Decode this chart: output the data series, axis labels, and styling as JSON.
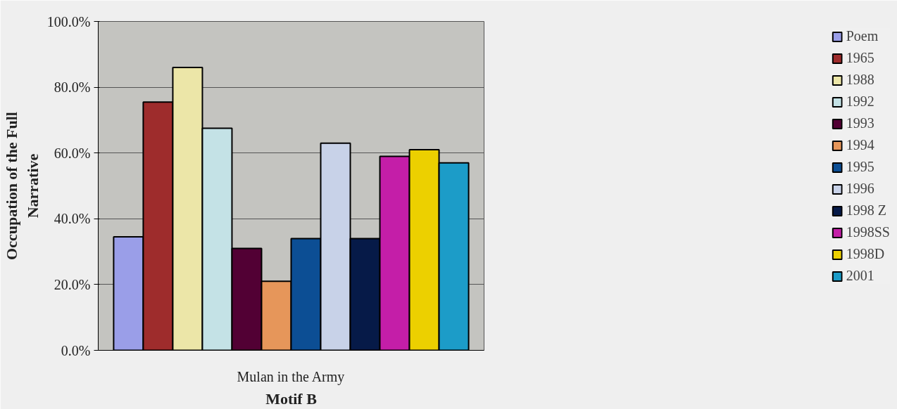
{
  "chart_data": {
    "type": "bar",
    "xlabel": "Motif B",
    "ylabel": "Occupation of the Full\nNarrative",
    "categories": [
      "Mulan in the Army"
    ],
    "series": [
      {
        "name": "Poem",
        "color": "#9a9ee8",
        "values": [
          34.5
        ]
      },
      {
        "name": "1965",
        "color": "#9e2c2c",
        "values": [
          75.5
        ]
      },
      {
        "name": "1988",
        "color": "#ece6a8",
        "values": [
          86
        ]
      },
      {
        "name": "1992",
        "color": "#c4e2e6",
        "values": [
          67.5
        ]
      },
      {
        "name": "1993",
        "color": "#520034",
        "values": [
          31
        ]
      },
      {
        "name": "1994",
        "color": "#e6965a",
        "values": [
          21
        ]
      },
      {
        "name": "1995",
        "color": "#0c4e94",
        "values": [
          34
        ]
      },
      {
        "name": "1996",
        "color": "#c8d2e8",
        "values": [
          63
        ]
      },
      {
        "name": "1998 Z",
        "color": "#061a48",
        "values": [
          34
        ]
      },
      {
        "name": "1998SS",
        "color": "#c41ea8",
        "values": [
          59
        ]
      },
      {
        "name": "1998D",
        "color": "#ecd000",
        "values": [
          61
        ]
      },
      {
        "name": "2001",
        "color": "#1c9cc8",
        "values": [
          57
        ]
      }
    ],
    "ylim": [
      0,
      100
    ],
    "yticks": [
      {
        "value": 0,
        "label": "0.0%"
      },
      {
        "value": 20,
        "label": "20.0%"
      },
      {
        "value": 40,
        "label": "40.0%"
      },
      {
        "value": 60,
        "label": "60.0%"
      },
      {
        "value": 80,
        "label": "80.0%"
      },
      {
        "value": 100,
        "label": "100.0%"
      }
    ],
    "grid": "y",
    "legend": "right"
  }
}
